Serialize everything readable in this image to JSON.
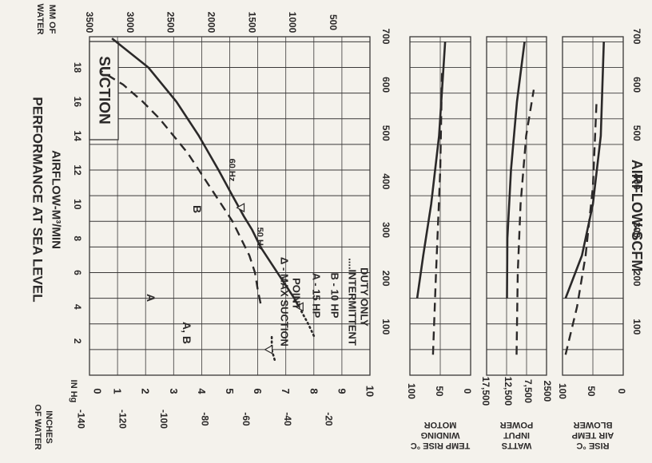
{
  "chart_data": [
    {
      "type": "line",
      "panel": "main",
      "title": "PERFORMANCE AT SEA LEVEL",
      "subtitle": "AIRFLOW-M³/MIN",
      "badge": "SUCTION",
      "airflow_m3_ticks": [
        "2",
        "4",
        "6",
        "8",
        "10",
        "12",
        "14",
        "16",
        "18"
      ],
      "airflow_scfm_ticks": [
        "100",
        "200",
        "300",
        "400",
        "500",
        "600",
        "700"
      ],
      "xlabel": "AIRFLOW-SCFM",
      "in_hg_label": "IN Hg",
      "in_hg_ticks": [
        "10",
        "9",
        "8",
        "7",
        "6",
        "5",
        "4",
        "3",
        "2",
        "1",
        "0"
      ],
      "mm_water_label_line1": "MM OF",
      "mm_water_label_line2": "WATER",
      "mm_water_ticks": [
        "3500",
        "3000",
        "2500",
        "2000",
        "1500",
        "1000",
        "500"
      ],
      "inches_water_label_line1": "INCHES",
      "inches_water_label_line2": "OF WATER",
      "inches_water_ticks": [
        "-140",
        "-120",
        "-100",
        "-80",
        "-60",
        "-40",
        "-20"
      ],
      "ylim_in_hg": [
        10,
        0
      ],
      "xlim_m3_min": [
        0,
        19.8
      ],
      "grid": true,
      "curve_labels": {
        "hz60": "60 Hz",
        "hz50": "50 Hz",
        "A": "A",
        "B": "B",
        "AB": "A, B"
      },
      "legend": [
        "Δ - MAX SUCTION",
        "POINT",
        "A - 15 HP",
        "B - 10 HP",
        "....INTERMITTENT",
        "DUTY ONLY"
      ],
      "series": [
        {
          "name": "60 Hz",
          "style": "solid",
          "points": [
            [
              3.9,
              7.5
            ],
            [
              4.5,
              7.3
            ],
            [
              5.5,
              6.9
            ],
            [
              6.5,
              6.5
            ],
            [
              7.5,
              6.1
            ],
            [
              8.5,
              5.8
            ],
            [
              9.3,
              5.5
            ],
            [
              10.5,
              5.1
            ],
            [
              12,
              4.6
            ],
            [
              14,
              3.9
            ],
            [
              16,
              3.1
            ],
            [
              18,
              2.1
            ],
            [
              19.7,
              0.8
            ]
          ]
        },
        {
          "name": "60 Hz intermittent",
          "style": "dotted",
          "points": [
            [
              2.3,
              8.0
            ],
            [
              3.0,
              7.8
            ],
            [
              3.9,
              7.5
            ]
          ]
        },
        {
          "name": "50 Hz",
          "style": "dashed",
          "points": [
            [
              4.2,
              6.1
            ],
            [
              5,
              6.0
            ],
            [
              6,
              5.9
            ],
            [
              7,
              5.7
            ],
            [
              8,
              5.4
            ],
            [
              9,
              5.1
            ],
            [
              10,
              4.7
            ],
            [
              11,
              4.3
            ],
            [
              12,
              3.9
            ],
            [
              13,
              3.5
            ],
            [
              14,
              3.0
            ],
            [
              15,
              2.5
            ],
            [
              16,
              1.9
            ],
            [
              17,
              1.2
            ],
            [
              17.8,
              0.4
            ]
          ]
        },
        {
          "name": "50 Hz intermittent",
          "style": "dotted",
          "points": [
            [
              0.9,
              6.6
            ],
            [
              1.5,
              6.5
            ],
            [
              2.3,
              6.5
            ]
          ]
        }
      ],
      "max_suction_points": [
        [
          4.0,
          7.5
        ],
        [
          9.8,
          5.4
        ],
        [
          1.5,
          6.4
        ]
      ]
    },
    {
      "type": "line",
      "panel": "motor",
      "ylabel_lines": [
        "MOTOR",
        "WINDING",
        "TEMP RISE °C"
      ],
      "ticks": [
        "100",
        "50",
        "0"
      ],
      "ylim": [
        100,
        0
      ],
      "series": [
        {
          "name": "60 Hz",
          "style": "solid",
          "points": [
            [
              4.5,
              88
            ],
            [
              7,
              78
            ],
            [
              10,
              65
            ],
            [
              14,
              52
            ],
            [
              19.5,
              42
            ]
          ]
        },
        {
          "name": "50 Hz",
          "style": "dashed",
          "points": [
            [
              1.2,
              62
            ],
            [
              6,
              57
            ],
            [
              12,
              50
            ],
            [
              18,
              47
            ]
          ]
        }
      ]
    },
    {
      "type": "line",
      "panel": "power",
      "ylabel_lines": [
        "POWER",
        "INPUT",
        "WATTS"
      ],
      "ticks": [
        "17,500",
        "12,500",
        "7,500",
        "2500"
      ],
      "ylim": [
        17500,
        2500
      ],
      "series": [
        {
          "name": "60 Hz",
          "style": "solid",
          "points": [
            [
              4.5,
              12400
            ],
            [
              8,
              12300
            ],
            [
              12,
              11400
            ],
            [
              16,
              9900
            ],
            [
              19.5,
              8000
            ]
          ]
        },
        {
          "name": "50 Hz",
          "style": "dashed",
          "points": [
            [
              1.2,
              10000
            ],
            [
              6,
              9700
            ],
            [
              10,
              9000
            ],
            [
              14,
              7600
            ],
            [
              16.7,
              5700
            ]
          ]
        }
      ]
    },
    {
      "type": "line",
      "panel": "blower",
      "ylabel_lines": [
        "BLOWER",
        "AIR TEMP",
        "RISE °C"
      ],
      "ticks": [
        "100",
        "50",
        "0"
      ],
      "ylim": [
        100,
        0
      ],
      "series": [
        {
          "name": "60 Hz",
          "style": "solid",
          "points": [
            [
              4.5,
              95
            ],
            [
              7,
              68
            ],
            [
              10,
              50
            ],
            [
              14,
              37
            ],
            [
              19.5,
              32
            ]
          ]
        },
        {
          "name": "50 Hz",
          "style": "dashed",
          "points": [
            [
              1.2,
              95
            ],
            [
              4,
              76
            ],
            [
              7,
              62
            ],
            [
              11,
              50
            ],
            [
              16,
              44
            ]
          ]
        }
      ]
    }
  ]
}
